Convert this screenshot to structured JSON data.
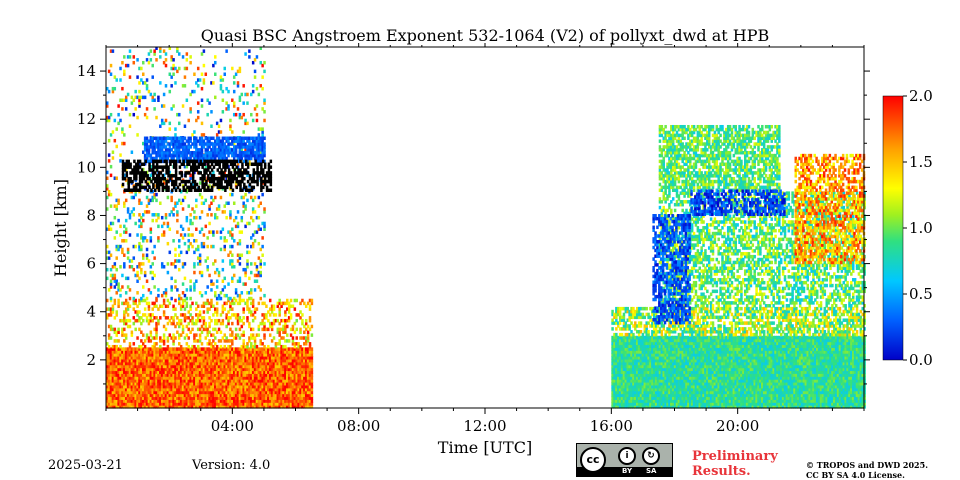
{
  "chart_data": {
    "type": "heatmap",
    "title": "Quasi BSC Angstroem Exponent 532-1064 (V2) of pollyxt_dwd at HPB",
    "xlabel": "Time [UTC]",
    "ylabel": "Height [km]",
    "xlim": [
      0,
      24
    ],
    "ylim": [
      0,
      15
    ],
    "x_ticks": [
      4,
      8,
      12,
      16,
      20
    ],
    "x_tick_labels": [
      "04:00",
      "08:00",
      "12:00",
      "16:00",
      "20:00"
    ],
    "y_ticks": [
      2,
      4,
      6,
      8,
      10,
      12,
      14
    ],
    "y_tick_labels": [
      "2",
      "4",
      "6",
      "8",
      "10",
      "12",
      "14"
    ],
    "colorbar": {
      "range": [
        0,
        2
      ],
      "ticks": [
        0,
        0.5,
        1,
        1.5,
        2
      ],
      "tick_labels": [
        "0.0",
        "0.5",
        "1.0",
        "1.5",
        "2.0"
      ],
      "colormap": "jet"
    },
    "regions": [
      {
        "t0": 0.0,
        "t1": 6.5,
        "h0": 0.0,
        "h1": 2.5,
        "value": 1.75,
        "noise": 0.3,
        "density": 1.0
      },
      {
        "t0": 0.0,
        "t1": 6.5,
        "h0": 2.5,
        "h1": 4.5,
        "value": 1.5,
        "noise": 0.5,
        "density": 0.35
      },
      {
        "t0": 0.0,
        "t1": 5.0,
        "h0": 4.5,
        "h1": 9.5,
        "value": 1.0,
        "noise": 0.9,
        "density": 0.18
      },
      {
        "t0": 0.0,
        "t1": 5.0,
        "h0": 9.5,
        "h1": 15.0,
        "value": 1.0,
        "noise": 1.0,
        "density": 0.12
      },
      {
        "t0": 1.2,
        "t1": 5.0,
        "h0": 10.2,
        "h1": 11.2,
        "value": 0.3,
        "noise": 0.15,
        "density": 0.85
      },
      {
        "t0": 0.5,
        "t1": 5.2,
        "h0": 9.0,
        "h1": 10.3,
        "value": -0.2,
        "noise": 0.1,
        "density": 0.55
      },
      {
        "t0": 16.0,
        "t1": 24.0,
        "h0": 0.0,
        "h1": 3.0,
        "value": 0.85,
        "noise": 0.2,
        "density": 1.0
      },
      {
        "t0": 16.0,
        "t1": 24.0,
        "h0": 3.0,
        "h1": 4.2,
        "value": 1.1,
        "noise": 0.45,
        "density": 0.65
      },
      {
        "t0": 17.5,
        "t1": 24.0,
        "h0": 4.2,
        "h1": 9.0,
        "value": 0.95,
        "noise": 0.35,
        "density": 0.55
      },
      {
        "t0": 17.5,
        "t1": 21.3,
        "h0": 9.0,
        "h1": 11.7,
        "value": 0.95,
        "noise": 0.3,
        "density": 0.7
      },
      {
        "t0": 21.8,
        "t1": 24.0,
        "h0": 6.0,
        "h1": 10.5,
        "value": 1.6,
        "noise": 0.35,
        "density": 0.55
      },
      {
        "t0": 17.3,
        "t1": 18.5,
        "h0": 3.5,
        "h1": 8.0,
        "value": 0.25,
        "noise": 0.2,
        "density": 0.6
      },
      {
        "t0": 18.5,
        "t1": 21.5,
        "h0": 8.0,
        "h1": 9.0,
        "value": 0.2,
        "noise": 0.2,
        "density": 0.6
      }
    ]
  },
  "footer": {
    "date": "2025-03-21",
    "version": "Version: 4.0",
    "license_badge": {
      "by": "BY",
      "sa": "SA"
    },
    "preliminary": [
      "Preliminary",
      "Results."
    ],
    "copyright": [
      "© TROPOS and DWD 2025.",
      "CC BY SA 4.0 License."
    ]
  }
}
